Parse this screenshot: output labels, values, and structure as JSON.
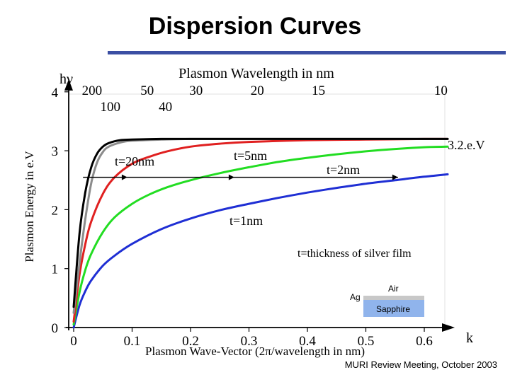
{
  "page_title": "Dispersion Curves",
  "footer": "MURI Review Meeting, October 2003",
  "chart_data": {
    "type": "line",
    "title": "Dispersion Curves",
    "xlabel": "Plasmon Wave-Vector (2π/wavelength in nm)",
    "ylabel": "Plasmon Energy in e.V",
    "top_axis_label": "Plasmon Wavelength in nm",
    "y_axis_symbol": "hν",
    "x_axis_symbol": "k",
    "xlim": [
      0,
      0.68
    ],
    "ylim": [
      0,
      4
    ],
    "x_ticks": [
      {
        "value": 0,
        "label": "0"
      },
      {
        "value": 0.1,
        "label": "0.1"
      },
      {
        "value": 0.2,
        "label": "0.2"
      },
      {
        "value": 0.3,
        "label": "0.3"
      },
      {
        "value": 0.4,
        "label": "0.4"
      },
      {
        "value": 0.5,
        "label": "0.5"
      },
      {
        "value": 0.6,
        "label": "0.6"
      }
    ],
    "y_ticks": [
      {
        "value": 0,
        "label": "0"
      },
      {
        "value": 1,
        "label": "1"
      },
      {
        "value": 2,
        "label": "2"
      },
      {
        "value": 3,
        "label": "3"
      },
      {
        "value": 4,
        "label": "4"
      }
    ],
    "top_ticks_upper": [
      {
        "k": 0.0314,
        "label": "200"
      },
      {
        "k": 0.1257,
        "label": "50"
      },
      {
        "k": 0.2094,
        "label": "30"
      },
      {
        "k": 0.3142,
        "label": "20"
      },
      {
        "k": 0.4189,
        "label": "15"
      },
      {
        "k": 0.6283,
        "label": "10"
      }
    ],
    "top_ticks_lower": [
      {
        "k": 0.0628,
        "label": "100"
      },
      {
        "k": 0.1571,
        "label": "40"
      }
    ],
    "series": [
      {
        "name": "black",
        "color": "#000000",
        "x": [
          0.0,
          0.01,
          0.02,
          0.03,
          0.04,
          0.05,
          0.06,
          0.08,
          0.1,
          0.15,
          0.2,
          0.3,
          0.4,
          0.5,
          0.6,
          0.64
        ],
        "y": [
          0.35,
          1.6,
          2.3,
          2.72,
          2.95,
          3.07,
          3.13,
          3.18,
          3.19,
          3.2,
          3.2,
          3.2,
          3.2,
          3.2,
          3.2,
          3.2
        ]
      },
      {
        "name": "t=20nm",
        "color": "#8c8c8c",
        "x": [
          0.0,
          0.01,
          0.02,
          0.03,
          0.04,
          0.05,
          0.06,
          0.08,
          0.1,
          0.15,
          0.2,
          0.3,
          0.4,
          0.5,
          0.6,
          0.64
        ],
        "y": [
          0.25,
          1.1,
          1.85,
          2.45,
          2.8,
          2.98,
          3.07,
          3.14,
          3.17,
          3.19,
          3.2,
          3.2,
          3.2,
          3.2,
          3.2,
          3.2
        ]
      },
      {
        "name": "t=5nm",
        "color": "#e02020",
        "x": [
          0.0,
          0.01,
          0.02,
          0.03,
          0.05,
          0.07,
          0.1,
          0.13,
          0.16,
          0.2,
          0.25,
          0.3,
          0.4,
          0.5,
          0.6,
          0.64
        ],
        "y": [
          0.1,
          0.9,
          1.42,
          1.8,
          2.27,
          2.55,
          2.78,
          2.9,
          2.99,
          3.07,
          3.12,
          3.15,
          3.18,
          3.19,
          3.2,
          3.2
        ]
      },
      {
        "name": "t=2nm",
        "color": "#22dd22",
        "x": [
          0.0,
          0.01,
          0.02,
          0.03,
          0.05,
          0.07,
          0.1,
          0.13,
          0.16,
          0.2,
          0.25,
          0.3,
          0.35,
          0.4,
          0.45,
          0.5,
          0.55,
          0.6,
          0.64
        ],
        "y": [
          0.05,
          0.6,
          0.98,
          1.25,
          1.62,
          1.87,
          2.1,
          2.26,
          2.38,
          2.5,
          2.62,
          2.72,
          2.81,
          2.88,
          2.94,
          2.99,
          3.03,
          3.06,
          3.07
        ]
      },
      {
        "name": "t=1nm",
        "color": "#1f2fd4",
        "x": [
          0.0,
          0.01,
          0.02,
          0.03,
          0.05,
          0.07,
          0.1,
          0.15,
          0.2,
          0.25,
          0.3,
          0.35,
          0.4,
          0.45,
          0.5,
          0.55,
          0.6,
          0.64
        ],
        "y": [
          0.0,
          0.38,
          0.62,
          0.8,
          1.05,
          1.22,
          1.42,
          1.67,
          1.85,
          1.99,
          2.1,
          2.2,
          2.29,
          2.37,
          2.44,
          2.5,
          2.56,
          2.6
        ]
      }
    ],
    "reference_line": {
      "y": 2.55,
      "x_start": 0.016,
      "x_end": 0.555,
      "arrow_x": [
        0.092,
        0.275,
        0.555
      ]
    },
    "annotations": [
      {
        "text": "t=20nm",
        "x": 0.08,
        "y": 2.78
      },
      {
        "text": "t=5nm",
        "x": 0.305,
        "y": 2.96
      },
      {
        "text": "t=2nm",
        "x": 0.455,
        "y": 2.7
      },
      {
        "text": "t=1nm",
        "x": 0.278,
        "y": 1.8
      },
      {
        "text": "t=thickness of silver film",
        "x": 0.41,
        "y": 1.25
      },
      {
        "text": "3.2.e.V",
        "x": 0.675,
        "y": 3.2
      }
    ],
    "inset": {
      "labels": [
        "Air",
        "Ag",
        "Sapphire"
      ]
    }
  }
}
